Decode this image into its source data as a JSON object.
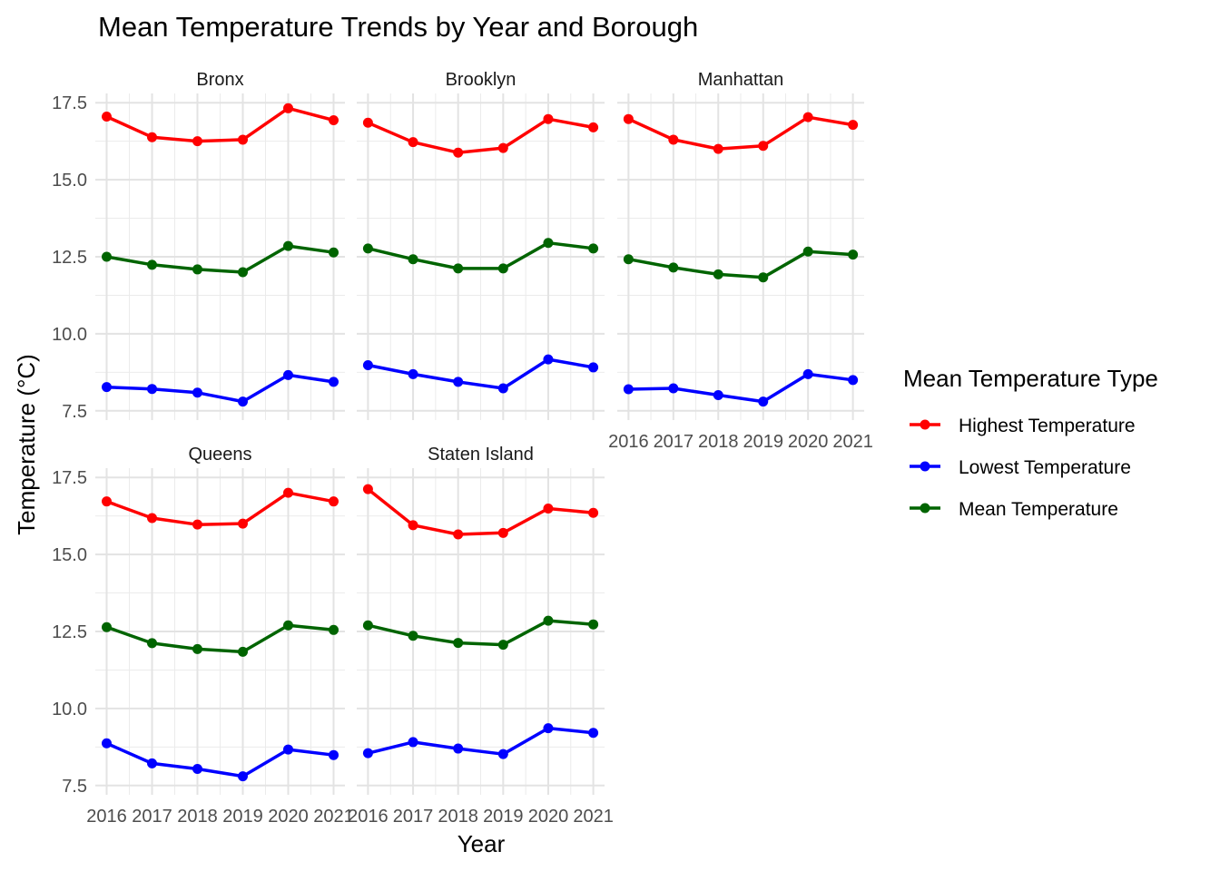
{
  "chart_data": {
    "type": "line",
    "title": "Mean Temperature Trends by Year and Borough",
    "xlabel": "Year",
    "ylabel": "Temperature (°C)",
    "x": [
      2016,
      2017,
      2018,
      2019,
      2020,
      2021
    ],
    "x_tick_labels": [
      "2016",
      "2017",
      "2018",
      "2019",
      "2020",
      "2021"
    ],
    "ylim": [
      7.2,
      17.8
    ],
    "y_ticks": [
      7.5,
      10.0,
      12.5,
      15.0,
      17.5
    ],
    "y_tick_labels": [
      "7.5",
      "10.0",
      "12.5",
      "15.0",
      "17.5"
    ],
    "grid": true,
    "legend": {
      "title": "Mean Temperature Type",
      "placement": "right",
      "entries": [
        "Highest Temperature",
        "Lowest Temperature",
        "Mean Temperature"
      ]
    },
    "series_colors": {
      "Highest Temperature": "#ff0000",
      "Lowest Temperature": "#0000ff",
      "Mean Temperature": "#006400"
    },
    "panels": [
      {
        "name": "Bronx",
        "series": [
          {
            "name": "Highest Temperature",
            "values": [
              17.05,
              16.38,
              16.25,
              16.3,
              17.32,
              16.93
            ]
          },
          {
            "name": "Lowest Temperature",
            "values": [
              8.27,
              8.21,
              8.09,
              7.8,
              8.66,
              8.44
            ]
          },
          {
            "name": "Mean Temperature",
            "values": [
              12.5,
              12.24,
              12.09,
              12.0,
              12.85,
              12.64
            ]
          }
        ]
      },
      {
        "name": "Brooklyn",
        "series": [
          {
            "name": "Highest Temperature",
            "values": [
              16.85,
              16.22,
              15.88,
              16.03,
              16.97,
              16.7
            ]
          },
          {
            "name": "Lowest Temperature",
            "values": [
              8.98,
              8.69,
              8.44,
              8.23,
              9.17,
              8.91
            ]
          },
          {
            "name": "Mean Temperature",
            "values": [
              12.77,
              12.42,
              12.12,
              12.12,
              12.95,
              12.77
            ]
          }
        ]
      },
      {
        "name": "Manhattan",
        "series": [
          {
            "name": "Highest Temperature",
            "values": [
              16.97,
              16.3,
              16.0,
              16.1,
              17.03,
              16.78
            ]
          },
          {
            "name": "Lowest Temperature",
            "values": [
              8.2,
              8.23,
              8.01,
              7.8,
              8.69,
              8.5
            ]
          },
          {
            "name": "Mean Temperature",
            "values": [
              12.42,
              12.15,
              11.93,
              11.83,
              12.67,
              12.57
            ]
          }
        ]
      },
      {
        "name": "Queens",
        "series": [
          {
            "name": "Highest Temperature",
            "values": [
              16.72,
              16.18,
              15.97,
              16.0,
              17.0,
              16.72
            ]
          },
          {
            "name": "Lowest Temperature",
            "values": [
              8.87,
              8.22,
              8.04,
              7.8,
              8.67,
              8.49
            ]
          },
          {
            "name": "Mean Temperature",
            "values": [
              12.64,
              12.12,
              11.93,
              11.84,
              12.7,
              12.55
            ]
          }
        ]
      },
      {
        "name": "Staten Island",
        "series": [
          {
            "name": "Highest Temperature",
            "values": [
              17.12,
              15.95,
              15.65,
              15.7,
              16.49,
              16.35
            ]
          },
          {
            "name": "Lowest Temperature",
            "values": [
              8.55,
              8.91,
              8.7,
              8.52,
              9.36,
              9.21
            ]
          },
          {
            "name": "Mean Temperature",
            "values": [
              12.7,
              12.36,
              12.13,
              12.07,
              12.85,
              12.73
            ]
          }
        ]
      }
    ]
  }
}
